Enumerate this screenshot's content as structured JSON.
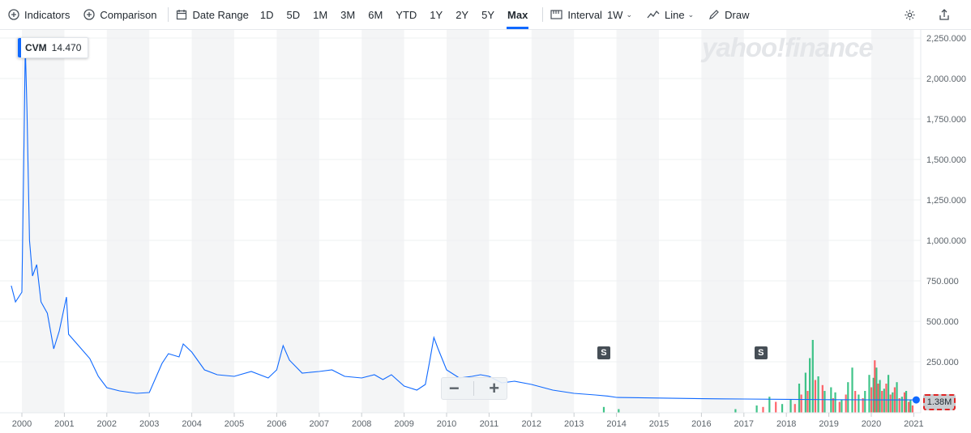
{
  "toolbar": {
    "indicators": "Indicators",
    "comparison": "Comparison",
    "date_range": "Date Range",
    "ranges": [
      "1D",
      "5D",
      "1M",
      "3M",
      "6M",
      "YTD",
      "1Y",
      "2Y",
      "5Y",
      "Max"
    ],
    "active_range": "Max",
    "interval_label": "Interval",
    "interval_value": "1W",
    "chart_type": "Line",
    "draw": "Draw"
  },
  "watermark": "yahoo!finance",
  "symbol_badge": {
    "symbol": "CVM",
    "price": "14.470"
  },
  "split_markers": [
    "S",
    "S"
  ],
  "zoom": {
    "minus": "−",
    "plus": "+"
  },
  "volume_badge": "1.38M",
  "colors": {
    "line": "#0f69ff",
    "vol_up": "#00b061",
    "vol_down": "#ff333a",
    "band": "#f4f5f6"
  },
  "chart_data": {
    "type": "line",
    "series": [
      {
        "name": "CVM",
        "x": [
          1999.75,
          1999.85,
          2000.0,
          2000.05,
          2000.08,
          2000.12,
          2000.18,
          2000.25,
          2000.35,
          2000.45,
          2000.6,
          2000.75,
          2000.88,
          2001.05,
          2001.1,
          2001.3,
          2001.6,
          2001.8,
          2002.0,
          2002.3,
          2002.7,
          2003.0,
          2003.3,
          2003.45,
          2003.7,
          2003.8,
          2004.0,
          2004.3,
          2004.6,
          2005.0,
          2005.4,
          2005.8,
          2006.0,
          2006.15,
          2006.3,
          2006.6,
          2007.0,
          2007.3,
          2007.6,
          2008.0,
          2008.3,
          2008.5,
          2008.7,
          2009.0,
          2009.3,
          2009.5,
          2009.6,
          2009.7,
          2009.8,
          2010.0,
          2010.3,
          2010.6,
          2010.8,
          2011.0,
          2011.3,
          2011.6,
          2012.0,
          2012.5,
          2013.0,
          2013.5,
          2013.8,
          2014.0,
          2015.0,
          2016.0,
          2017.0,
          2018.0,
          2019.0,
          2020.0,
          2020.5,
          2021.0
        ],
        "values": [
          720,
          620,
          680,
          1600,
          2200,
          1800,
          1000,
          780,
          850,
          620,
          550,
          330,
          440,
          650,
          420,
          360,
          270,
          160,
          90,
          70,
          55,
          60,
          240,
          300,
          280,
          360,
          310,
          200,
          170,
          160,
          190,
          150,
          200,
          350,
          260,
          180,
          190,
          200,
          160,
          150,
          170,
          140,
          170,
          100,
          75,
          110,
          250,
          400,
          330,
          200,
          150,
          160,
          170,
          160,
          120,
          130,
          110,
          75,
          55,
          45,
          38,
          30,
          26,
          22,
          20,
          18,
          16,
          15,
          14.5,
          14.47
        ]
      }
    ],
    "volume_up": [
      {
        "x": 2013.7,
        "v": 0.08
      },
      {
        "x": 2014.05,
        "v": 0.05
      },
      {
        "x": 2016.8,
        "v": 0.05
      },
      {
        "x": 2017.3,
        "v": 0.1
      },
      {
        "x": 2017.6,
        "v": 0.22
      },
      {
        "x": 2017.9,
        "v": 0.12
      },
      {
        "x": 2018.1,
        "v": 0.18
      },
      {
        "x": 2018.3,
        "v": 0.4
      },
      {
        "x": 2018.45,
        "v": 0.55
      },
      {
        "x": 2018.55,
        "v": 0.75
      },
      {
        "x": 2018.62,
        "v": 1.0
      },
      {
        "x": 2018.75,
        "v": 0.5
      },
      {
        "x": 2018.9,
        "v": 0.3
      },
      {
        "x": 2019.05,
        "v": 0.35
      },
      {
        "x": 2019.15,
        "v": 0.28
      },
      {
        "x": 2019.3,
        "v": 0.18
      },
      {
        "x": 2019.45,
        "v": 0.42
      },
      {
        "x": 2019.55,
        "v": 0.62
      },
      {
        "x": 2019.7,
        "v": 0.25
      },
      {
        "x": 2019.85,
        "v": 0.3
      },
      {
        "x": 2019.95,
        "v": 0.52
      },
      {
        "x": 2020.05,
        "v": 0.48
      },
      {
        "x": 2020.12,
        "v": 0.62
      },
      {
        "x": 2020.2,
        "v": 0.45
      },
      {
        "x": 2020.3,
        "v": 0.33
      },
      {
        "x": 2020.4,
        "v": 0.52
      },
      {
        "x": 2020.5,
        "v": 0.28
      },
      {
        "x": 2020.6,
        "v": 0.42
      },
      {
        "x": 2020.72,
        "v": 0.22
      },
      {
        "x": 2020.82,
        "v": 0.3
      },
      {
        "x": 2020.92,
        "v": 0.18
      }
    ],
    "volume_down": [
      {
        "x": 2017.45,
        "v": 0.08
      },
      {
        "x": 2017.75,
        "v": 0.15
      },
      {
        "x": 2018.2,
        "v": 0.12
      },
      {
        "x": 2018.35,
        "v": 0.25
      },
      {
        "x": 2018.5,
        "v": 0.3
      },
      {
        "x": 2018.68,
        "v": 0.45
      },
      {
        "x": 2018.85,
        "v": 0.38
      },
      {
        "x": 2019.1,
        "v": 0.2
      },
      {
        "x": 2019.25,
        "v": 0.15
      },
      {
        "x": 2019.4,
        "v": 0.25
      },
      {
        "x": 2019.62,
        "v": 0.3
      },
      {
        "x": 2019.8,
        "v": 0.2
      },
      {
        "x": 2020.0,
        "v": 0.35
      },
      {
        "x": 2020.08,
        "v": 0.72
      },
      {
        "x": 2020.16,
        "v": 0.4
      },
      {
        "x": 2020.25,
        "v": 0.3
      },
      {
        "x": 2020.35,
        "v": 0.4
      },
      {
        "x": 2020.45,
        "v": 0.25
      },
      {
        "x": 2020.55,
        "v": 0.35
      },
      {
        "x": 2020.66,
        "v": 0.2
      },
      {
        "x": 2020.78,
        "v": 0.28
      },
      {
        "x": 2020.88,
        "v": 0.15
      },
      {
        "x": 2020.97,
        "v": 0.1
      }
    ],
    "x_ticks": [
      "2000",
      "2001",
      "2002",
      "2003",
      "2004",
      "2005",
      "2006",
      "2007",
      "2008",
      "2009",
      "2010",
      "2011",
      "2012",
      "2013",
      "2014",
      "2015",
      "2016",
      "2017",
      "2018",
      "2019",
      "2020",
      "2021"
    ],
    "y_ticks": [
      "250.000",
      "500.000",
      "750.000",
      "1,000.000",
      "1,250.000",
      "1,500.000",
      "1,750.000",
      "2,000.000",
      "2,250.000"
    ],
    "split_dates": [
      2013.7,
      2017.4
    ],
    "ylim": [
      0,
      2300
    ],
    "xlim": [
      1999.5,
      2021.0
    ]
  }
}
